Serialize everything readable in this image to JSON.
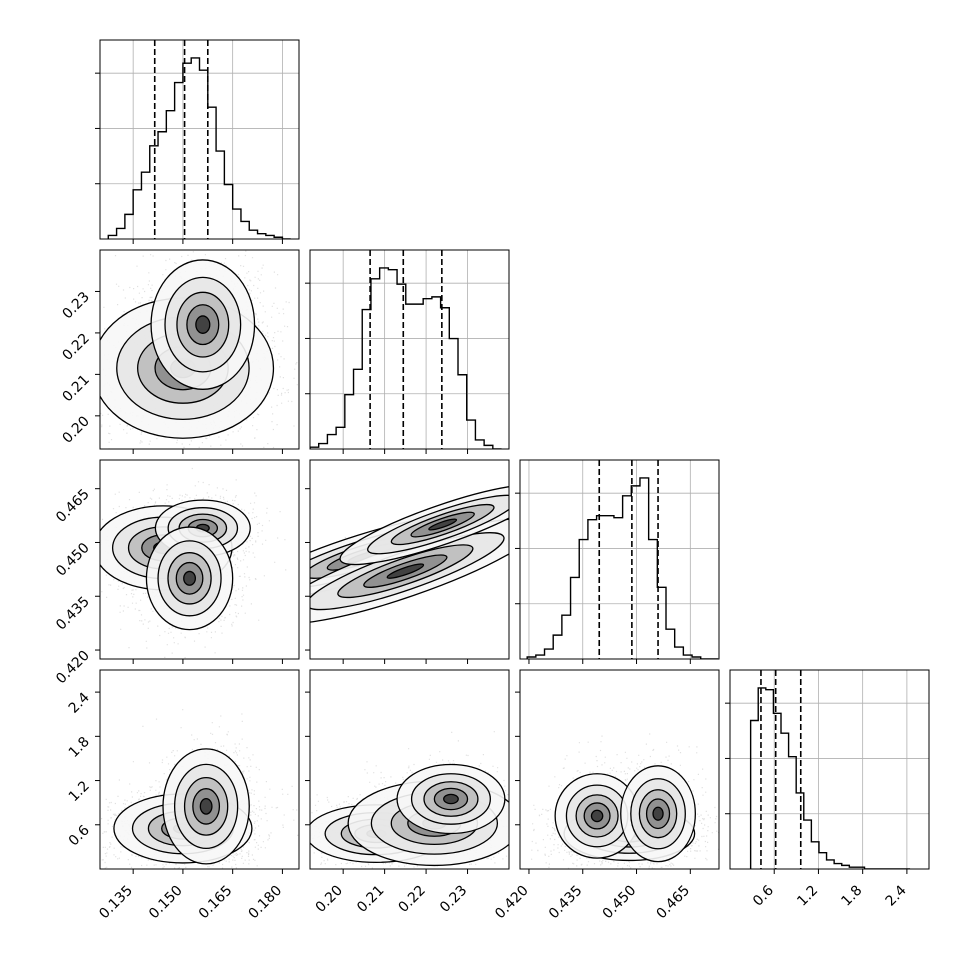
{
  "chart_data": {
    "type": "corner",
    "parameters": [
      {
        "ticks": [
          0.135,
          0.15,
          0.165,
          0.18
        ],
        "tick_labels": [
          "0.135",
          "0.150",
          "0.165",
          "0.180"
        ],
        "range": [
          0.125,
          0.185
        ],
        "quantiles": [
          0.1415,
          0.1505,
          0.1575
        ],
        "hist_edges_start": 0.1275,
        "hist_bin_width": 0.0025,
        "hist_counts": [
          2,
          6,
          14,
          28,
          38,
          53,
          61,
          73,
          89,
          100,
          103,
          96,
          75,
          50,
          31,
          17,
          10,
          5,
          3,
          2,
          1,
          0
        ]
      },
      {
        "ticks": [
          0.2,
          0.21,
          0.22,
          0.23
        ],
        "tick_labels": [
          "0.20",
          "0.21",
          "0.22",
          "0.23"
        ],
        "range": [
          0.192,
          0.24
        ],
        "quantiles": [
          0.2065,
          0.2145,
          0.2238
        ],
        "hist_edges_start": 0.192,
        "hist_bin_width": 0.0021,
        "hist_counts": [
          1,
          3,
          8,
          12,
          30,
          44,
          77,
          94,
          100,
          99,
          91,
          80,
          80,
          83,
          84,
          78,
          61,
          41,
          16,
          5,
          2,
          0
        ]
      },
      {
        "ticks": [
          0.42,
          0.435,
          0.45,
          0.465
        ],
        "tick_labels": [
          "0.420",
          "0.435",
          "0.450",
          "0.465"
        ],
        "range": [
          0.4175,
          0.473
        ],
        "quantiles": [
          0.4396,
          0.4487,
          0.456
        ],
        "hist_edges_start": 0.4195,
        "hist_bin_width": 0.00242,
        "hist_counts": [
          1,
          2,
          5,
          12,
          22,
          41,
          60,
          70,
          72,
          72,
          71,
          82,
          87,
          91,
          60,
          36,
          15,
          6,
          2,
          1,
          0,
          0
        ]
      },
      {
        "ticks": [
          0.6,
          1.2,
          1.8,
          2.4
        ],
        "tick_labels": [
          "0.6",
          "1.2",
          "1.8",
          "2.4"
        ],
        "range": [
          0.0,
          2.7
        ],
        "quantiles": [
          0.42,
          0.62,
          0.96
        ],
        "hist_edges_start": 0.28,
        "hist_bin_width": 0.103,
        "hist_counts": [
          82,
          100,
          99,
          86,
          75,
          62,
          42,
          27,
          15,
          9,
          5,
          3,
          2,
          1,
          1,
          0,
          0,
          0,
          0,
          0,
          0
        ]
      }
    ],
    "contour_modes": {
      "1_0": [
        {
          "x": 0.15,
          "y": 0.2115,
          "sx": 0.0105,
          "sy": 0.0065,
          "w": 1.0
        },
        {
          "x": 0.156,
          "y": 0.222,
          "sx": 0.006,
          "sy": 0.006,
          "w": 0.7
        }
      ],
      "2_0": [
        {
          "x": 0.144,
          "y": 0.4485,
          "sx": 0.008,
          "sy": 0.0045,
          "w": 0.8
        },
        {
          "x": 0.156,
          "y": 0.454,
          "sx": 0.0055,
          "sy": 0.003,
          "w": 0.8
        },
        {
          "x": 0.152,
          "y": 0.44,
          "sx": 0.005,
          "sy": 0.0055,
          "w": 1.0
        }
      ],
      "2_1": [
        {
          "x": 0.205,
          "y": 0.446,
          "sx": 0.011,
          "sy": 0.004,
          "w": 0.8,
          "r": 0.95
        },
        {
          "x": 0.215,
          "y": 0.442,
          "sx": 0.0125,
          "sy": 0.005,
          "w": 1.0,
          "r": 0.95
        },
        {
          "x": 0.224,
          "y": 0.455,
          "sx": 0.0095,
          "sy": 0.0038,
          "w": 0.95,
          "r": 0.95
        }
      ],
      "3_0": [
        {
          "x": 0.15,
          "y": 0.55,
          "sx": 0.008,
          "sy": 0.18,
          "w": 1.0
        },
        {
          "x": 0.157,
          "y": 0.85,
          "sx": 0.005,
          "sy": 0.3,
          "w": 0.6
        }
      ],
      "3_1": [
        {
          "x": 0.208,
          "y": 0.48,
          "sx": 0.0065,
          "sy": 0.15,
          "w": 1.0
        },
        {
          "x": 0.222,
          "y": 0.62,
          "sx": 0.008,
          "sy": 0.22,
          "w": 0.8
        },
        {
          "x": 0.226,
          "y": 0.95,
          "sx": 0.005,
          "sy": 0.18,
          "w": 0.45
        }
      ],
      "3_2": [
        {
          "x": 0.448,
          "y": 0.48,
          "sx": 0.007,
          "sy": 0.14,
          "w": 1.0
        },
        {
          "x": 0.439,
          "y": 0.72,
          "sx": 0.0045,
          "sy": 0.22,
          "w": 0.55
        },
        {
          "x": 0.456,
          "y": 0.75,
          "sx": 0.004,
          "sy": 0.25,
          "w": 0.6
        }
      ]
    },
    "xlabel": "",
    "ylabel": "",
    "grid": true,
    "quantile_line_style": "dashed"
  }
}
